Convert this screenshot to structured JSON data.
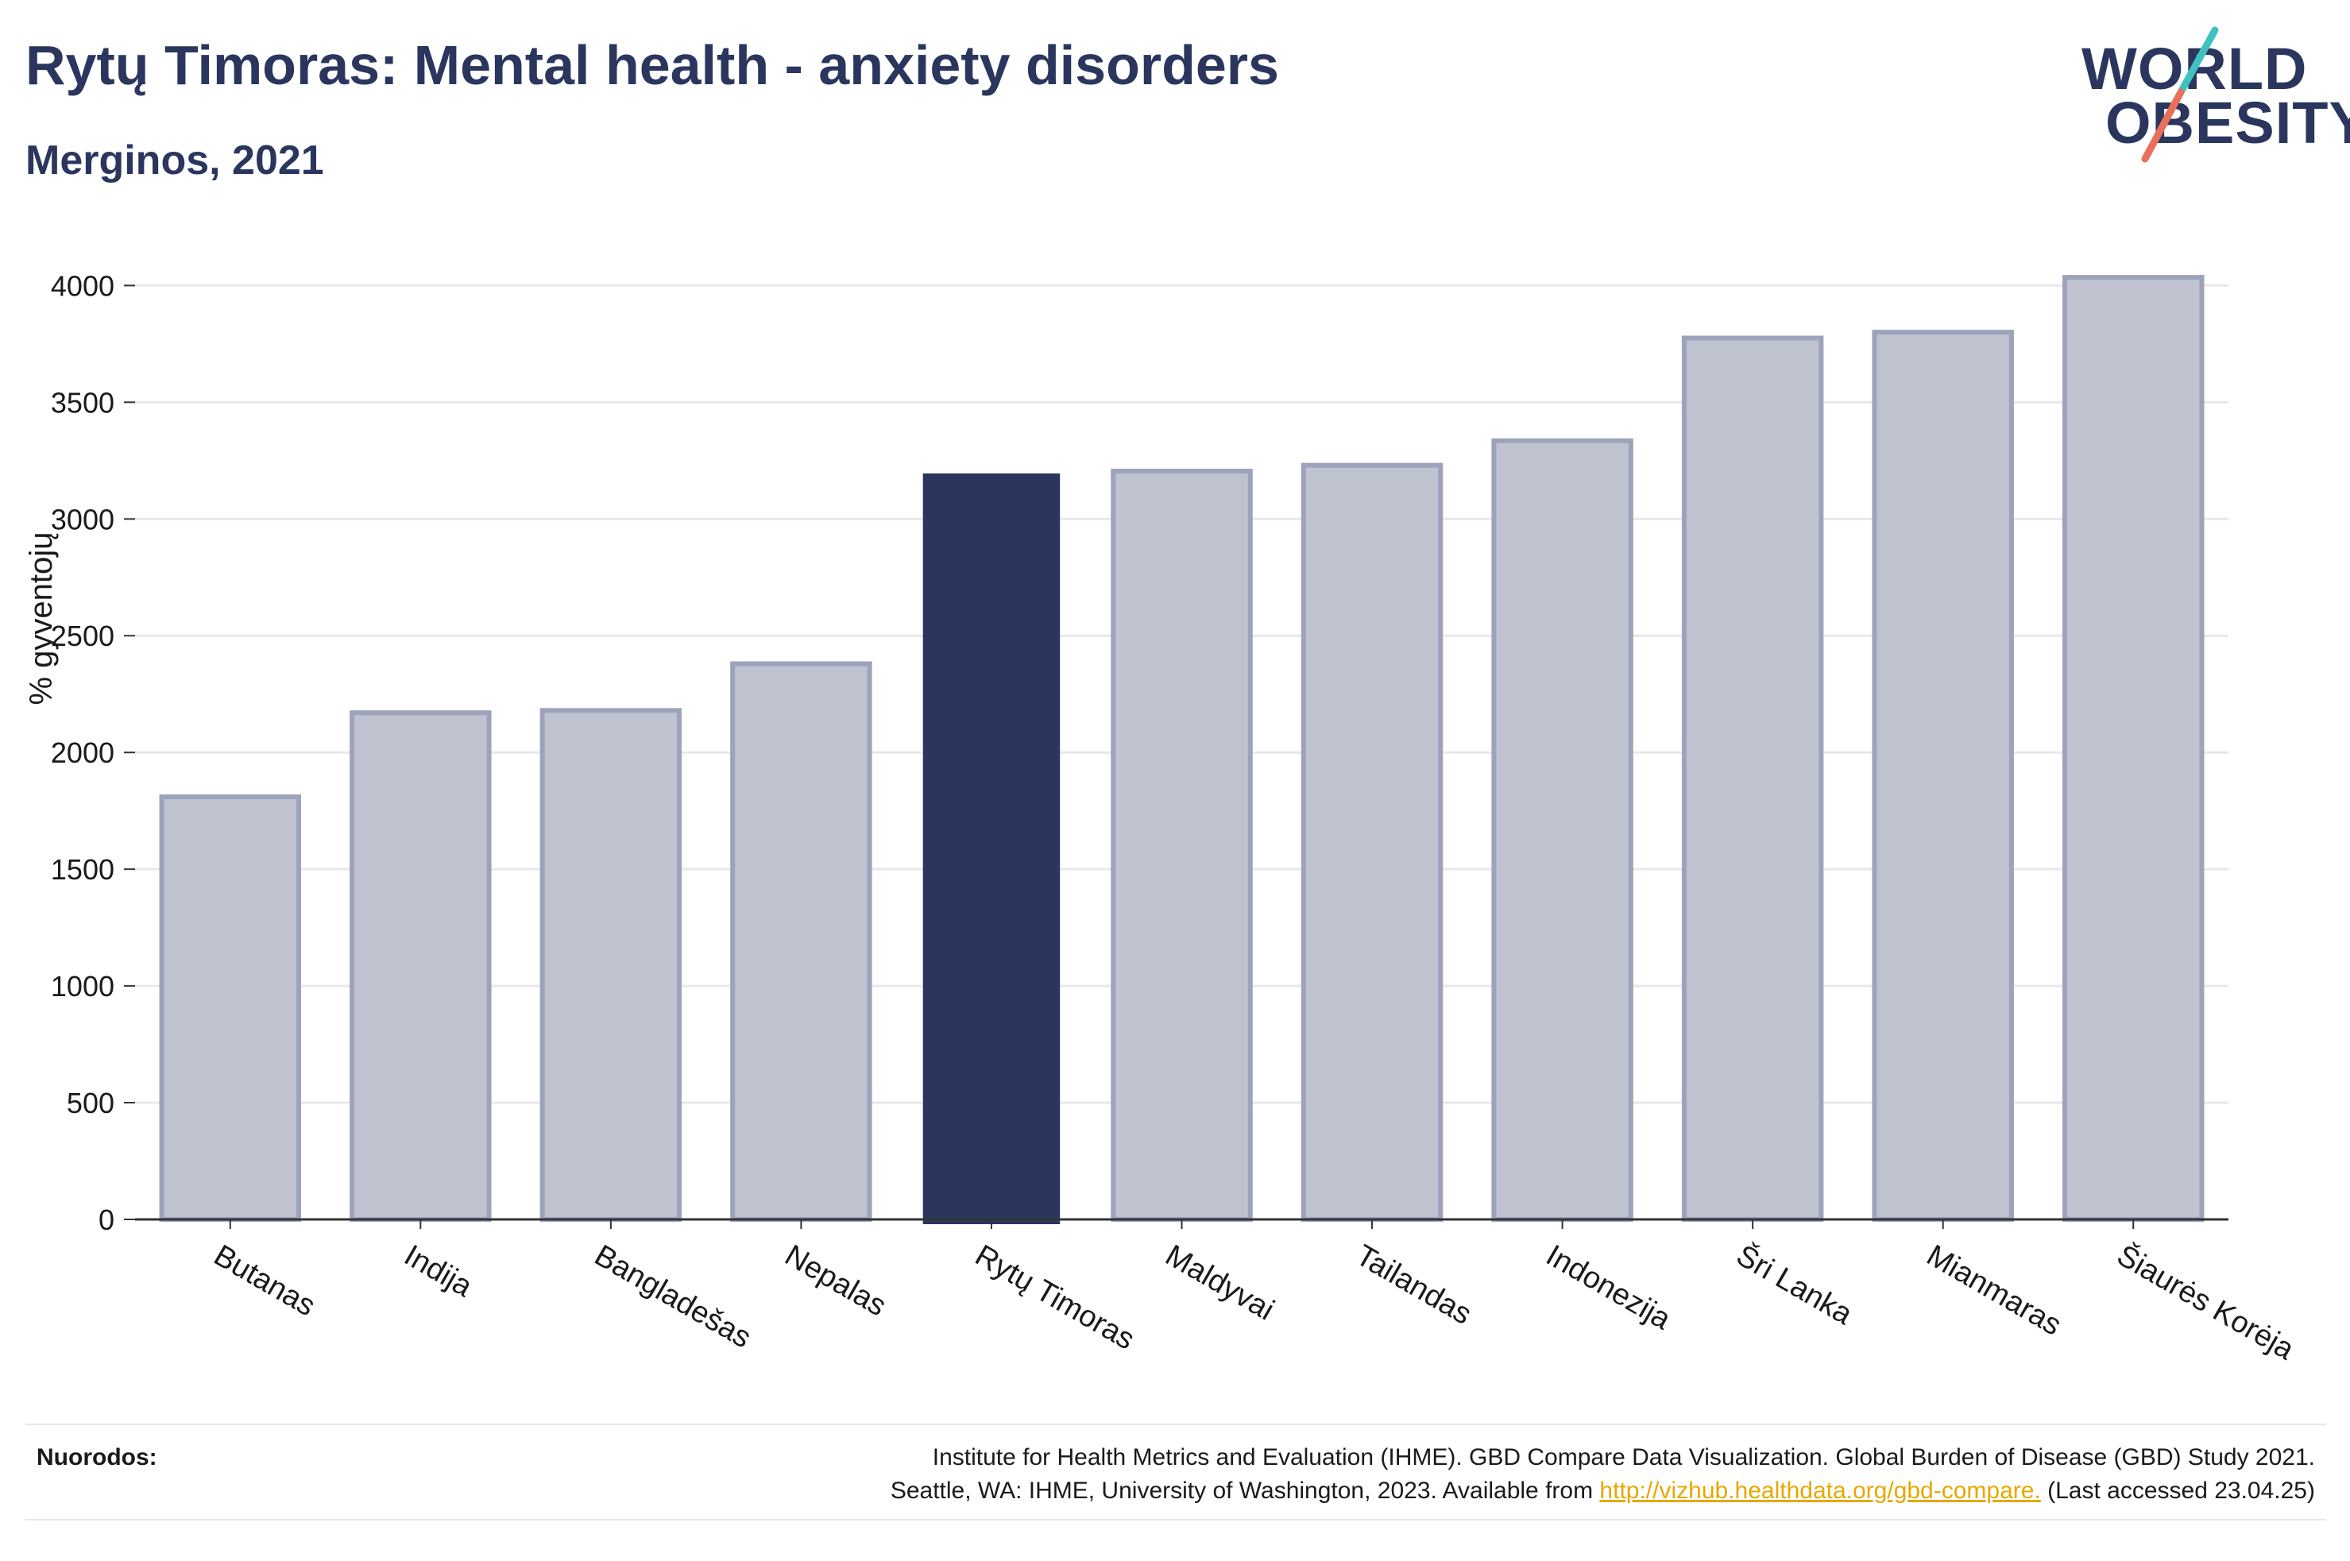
{
  "header": {
    "title": "Rytų Timoras: Mental health - anxiety disorders",
    "subtitle": "Merginos, 2021"
  },
  "logo": {
    "line1": "WORLD",
    "line2": "OBESITY",
    "colors": {
      "text": "#2b365e",
      "slash_top": "#3fc1c0",
      "slash_bottom": "#e8705a"
    }
  },
  "chart_data": {
    "type": "bar",
    "categories": [
      "Butanas",
      "Indija",
      "Bangladešas",
      "Nepalas",
      "Rytų Timoras",
      "Maldyvai",
      "Tailandas",
      "Indonezija",
      "Šri Lanka",
      "Mianmaras",
      "Šiaurės Korėja"
    ],
    "values": [
      1810,
      2170,
      2180,
      2380,
      3195,
      3205,
      3230,
      3335,
      3775,
      3800,
      4035
    ],
    "highlight": "Rytų Timoras",
    "ylabel": "% gyventojų",
    "xlabel": "",
    "ylim": [
      0,
      4100
    ],
    "yticks": [
      0,
      500,
      1000,
      1500,
      2000,
      2500,
      3000,
      3500,
      4000
    ],
    "grid": true,
    "colors": {
      "bar": "#bfc2cf",
      "bar_edge": "#9ca3bb",
      "highlight": "#2b365e",
      "grid": "#e8e8ec",
      "axis": "#333333"
    }
  },
  "footer": {
    "refs_label": "Nuorodos:",
    "line1": "Institute for Health Metrics and Evaluation (IHME). GBD Compare Data Visualization. Global Burden of Disease (GBD) Study 2021.",
    "line2_pre": "Seattle, WA: IHME, University of Washington, 2023. Available from ",
    "link": "http://vizhub.healthdata.org/gbd-compare.",
    "line2_post": " (Last accessed 23.04.25)"
  }
}
